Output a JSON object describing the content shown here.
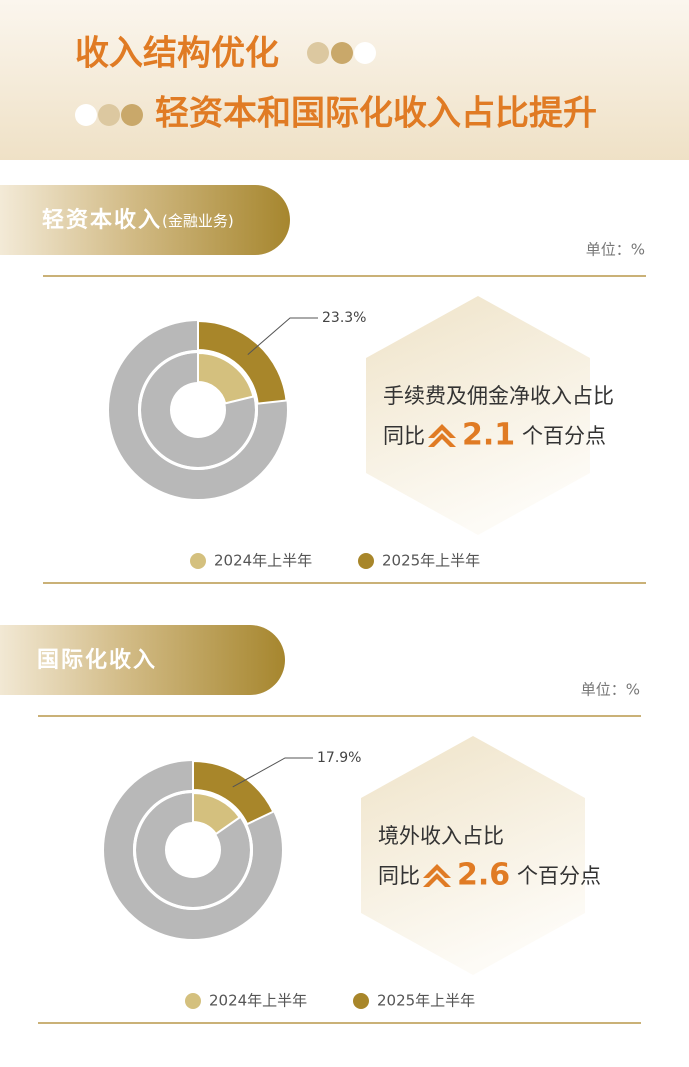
{
  "header": {
    "line1": "收入结构优化",
    "line2": "轻资本和国际化收入占比提升"
  },
  "chart_data": [
    {
      "type": "donut",
      "title": "轻资本收入",
      "subtitle": "(金融业务)",
      "unit": "单位：%",
      "series": [
        {
          "name": "2024年上半年",
          "color": "#d4c07e",
          "values": [
            21.2
          ]
        },
        {
          "name": "2025年上半年",
          "color": "#a8862a",
          "values": [
            23.3
          ],
          "value_labels": [
            "23.3%"
          ]
        }
      ],
      "annotation": {
        "text": "手续费及佣金净收入占比",
        "prefix": "同比",
        "change": 2.1,
        "suffix": "个百分点"
      }
    },
    {
      "type": "donut",
      "title": "国际化收入",
      "unit": "单位：%",
      "series": [
        {
          "name": "2024年上半年",
          "color": "#d4c07e",
          "values": [
            15.3
          ]
        },
        {
          "name": "2025年上半年",
          "color": "#a8862a",
          "values": [
            17.9
          ],
          "value_labels": [
            "17.9%"
          ]
        }
      ],
      "annotation": {
        "text": "境外收入占比",
        "prefix": "同比",
        "change": 2.6,
        "suffix": "个百分点"
      }
    }
  ]
}
